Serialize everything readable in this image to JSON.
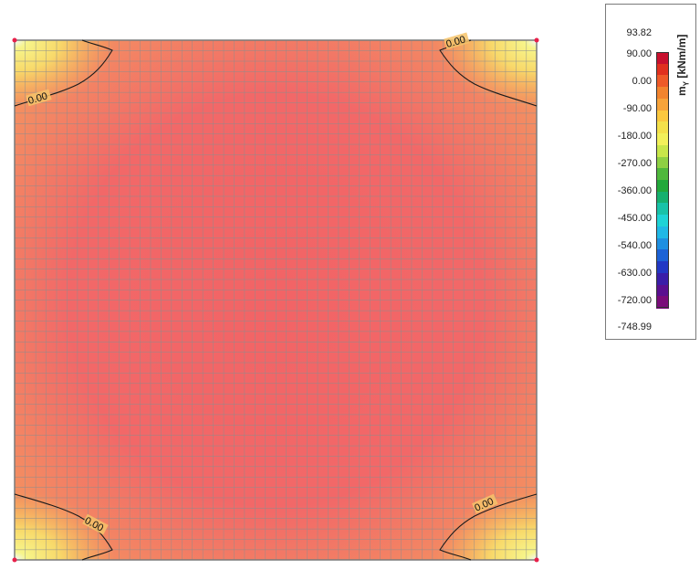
{
  "plot": {
    "contour_label": "0.00"
  },
  "legend": {
    "unit_symbol": "m",
    "unit_subscript": "Y",
    "unit_text": " [kNm/m]",
    "max_label": "93.82",
    "min_label": "-748.99",
    "tick_labels": [
      "90.00",
      "0.00",
      "-90.00",
      "-180.00",
      "-270.00",
      "-360.00",
      "-450.00",
      "-540.00",
      "-630.00",
      "-720.00"
    ],
    "colors": [
      "#c8102e",
      "#e0301e",
      "#ee5a28",
      "#f2842e",
      "#f7a33a",
      "#fbc83f",
      "#f4e04a",
      "#f2f05a",
      "#c8e64a",
      "#8ed043",
      "#4fb83c",
      "#22a83a",
      "#16b06e",
      "#18c2a8",
      "#1ed3d6",
      "#20b8e6",
      "#1e8fe0",
      "#1c62d6",
      "#2238c4",
      "#3a1ea8",
      "#5a1090",
      "#7a0c7a"
    ]
  }
}
